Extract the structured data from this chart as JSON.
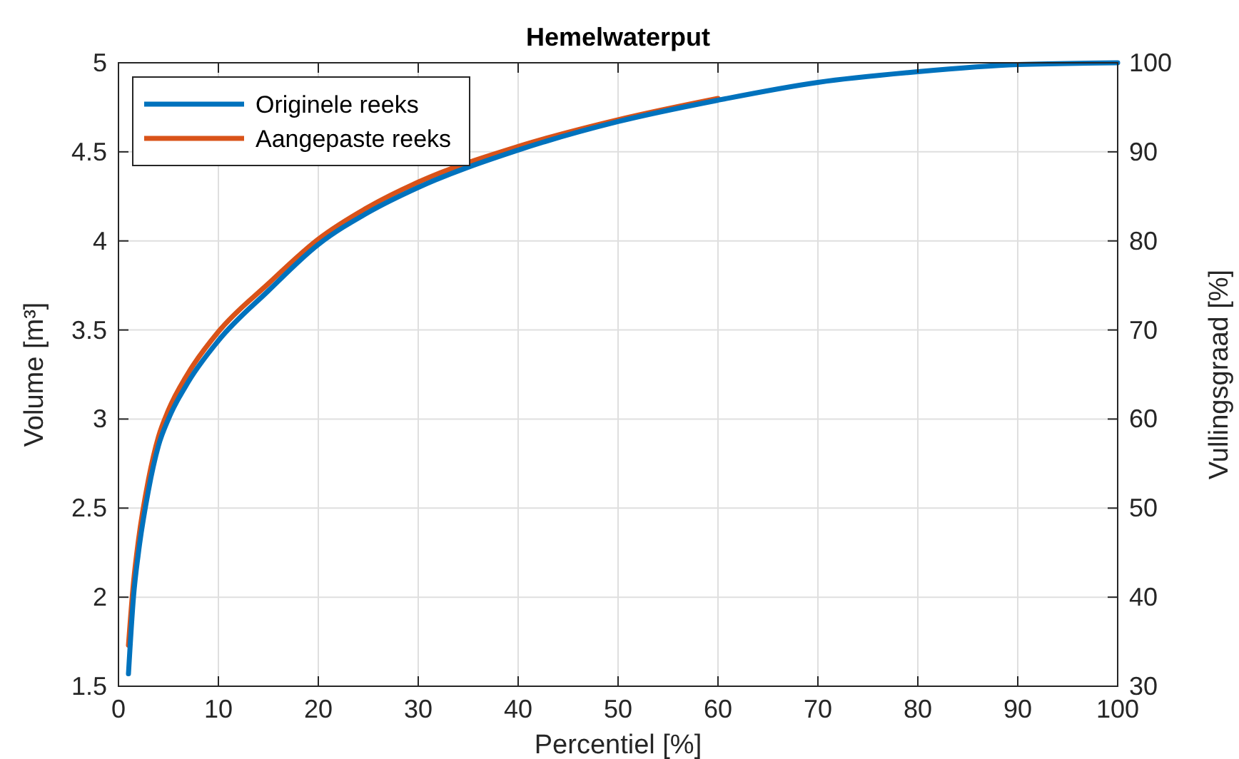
{
  "chart_data": {
    "type": "line",
    "title": "Hemelwaterput",
    "xlabel": "Percentiel [%]",
    "ylabel": "Volume [m³]",
    "y2label": "Vullingsgraad [%]",
    "xlim": [
      0,
      100
    ],
    "xticks": [
      0,
      10,
      20,
      30,
      40,
      50,
      60,
      70,
      80,
      90,
      100
    ],
    "ylim": [
      1.5,
      5
    ],
    "yticks": [
      1.5,
      2,
      2.5,
      3,
      3.5,
      4,
      4.5,
      5
    ],
    "y2lim": [
      30,
      100
    ],
    "y2ticks": [
      30,
      40,
      50,
      60,
      70,
      80,
      90,
      100
    ],
    "grid": true,
    "legend": "top left",
    "line_style": "solid",
    "series": [
      {
        "name": "Originele reeks",
        "color": "#0072bd",
        "x": [
          1,
          1.5,
          2,
          3,
          4,
          5,
          7,
          10,
          15,
          20,
          25,
          30,
          40,
          50,
          60,
          70,
          80,
          90,
          100
        ],
        "values": [
          1.57,
          2.0,
          2.25,
          2.6,
          2.85,
          3.0,
          3.21,
          3.44,
          3.72,
          3.98,
          4.16,
          4.3,
          4.51,
          4.67,
          4.79,
          4.89,
          4.95,
          4.99,
          5.0
        ]
      },
      {
        "name": "Aangepaste reeks",
        "color": "#d95319",
        "x": [
          1,
          1.5,
          2,
          3,
          4,
          5,
          7,
          10,
          15,
          20,
          25,
          30,
          40,
          50,
          60
        ],
        "values": [
          1.73,
          2.08,
          2.32,
          2.66,
          2.9,
          3.05,
          3.26,
          3.49,
          3.76,
          4.01,
          4.19,
          4.33,
          4.53,
          4.68,
          4.8
        ]
      }
    ]
  }
}
